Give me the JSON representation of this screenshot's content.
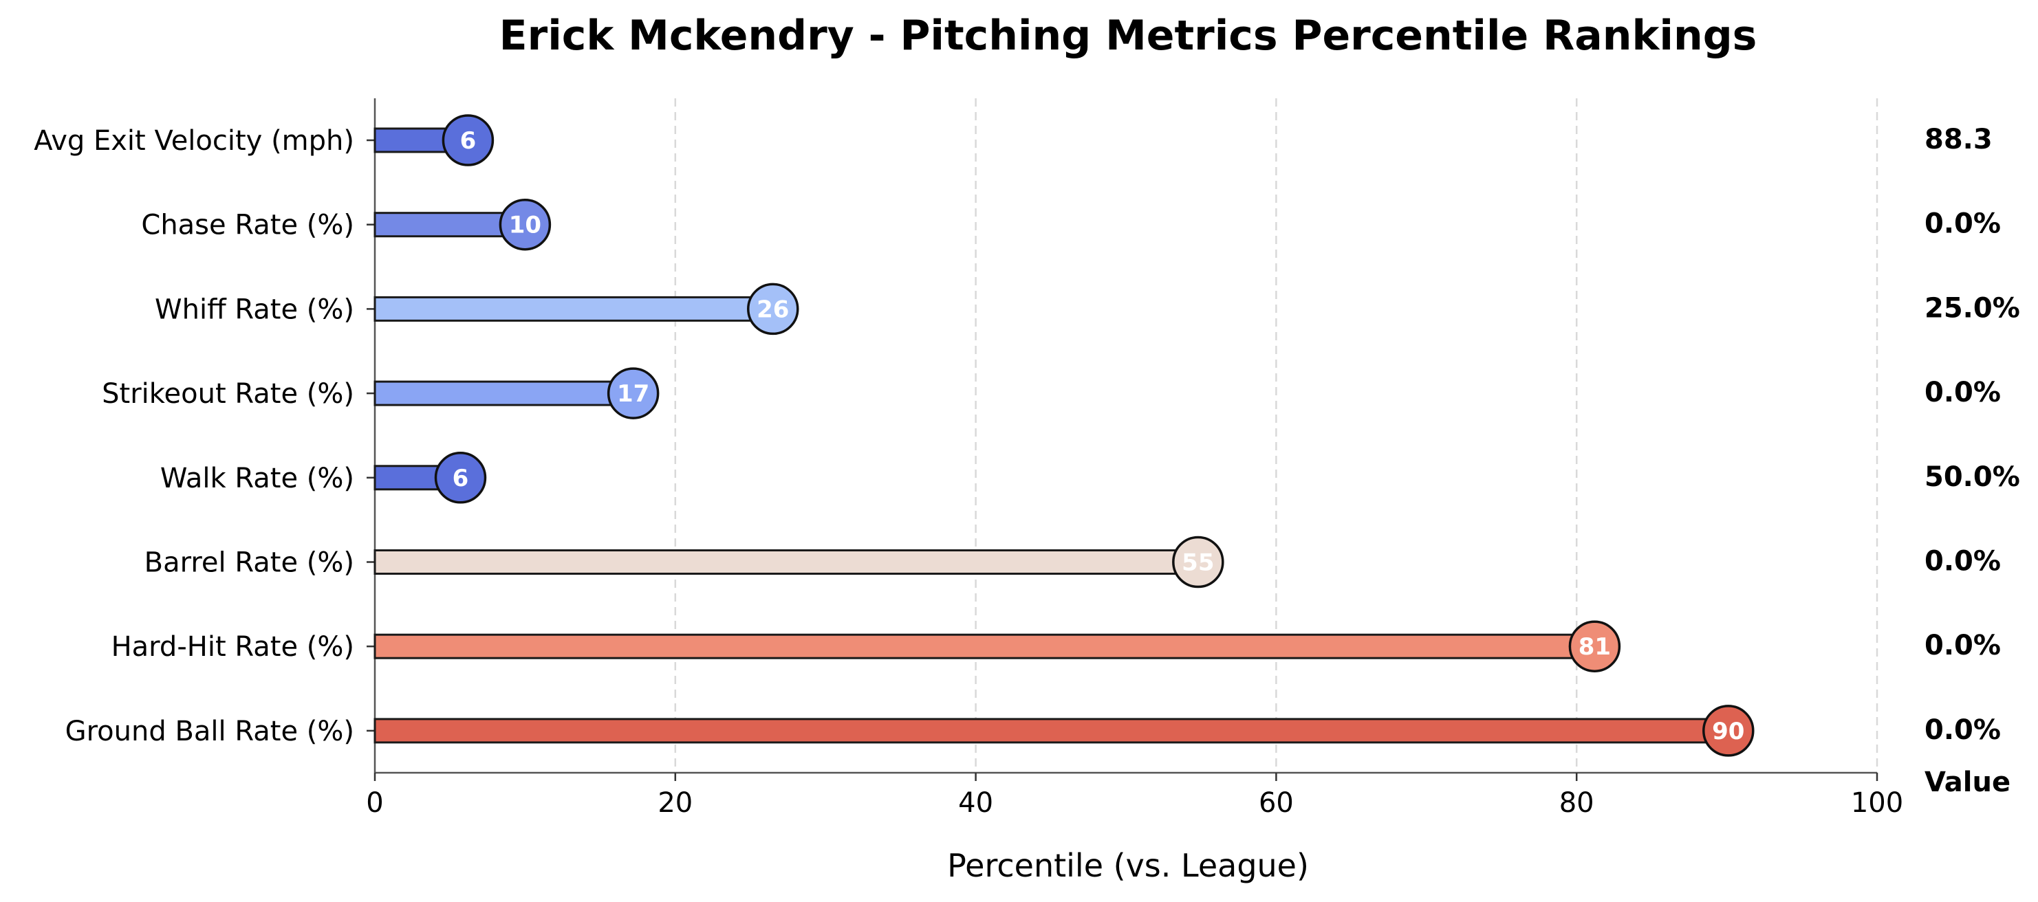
{
  "chart_data": {
    "type": "bar",
    "orientation": "horizontal",
    "title": "Erick Mckendry - Pitching Metrics Percentile Rankings",
    "xlabel": "Percentile (vs. League)",
    "ylabel": "",
    "xlim": [
      0,
      100
    ],
    "xticks": [
      0,
      20,
      40,
      60,
      80,
      100
    ],
    "grid": "vertical dashed",
    "value_column_header": "Value",
    "categories": [
      "Avg Exit Velocity (mph)",
      "Chase Rate (%)",
      "Whiff Rate (%)",
      "Strikeout Rate (%)",
      "Walk Rate (%)",
      "Barrel Rate (%)",
      "Hard-Hit Rate (%)",
      "Ground Ball Rate (%)"
    ],
    "percentiles": [
      6.2,
      10,
      26.5,
      17.2,
      5.7,
      54.8,
      81.2,
      90.1
    ],
    "percentile_labels": [
      "6",
      "10",
      "26",
      "17",
      "6",
      "55",
      "81",
      "90"
    ],
    "values": [
      "88.3",
      "0.0%",
      "25.0%",
      "0.0%",
      "50.0%",
      "0.0%",
      "0.0%",
      "0.0%"
    ],
    "colors": [
      "#5a6fdb",
      "#7489e6",
      "#a4c0f8",
      "#8aa5f4",
      "#5a6fdb",
      "#ecdcd3",
      "#ef8d76",
      "#dd6251"
    ]
  }
}
